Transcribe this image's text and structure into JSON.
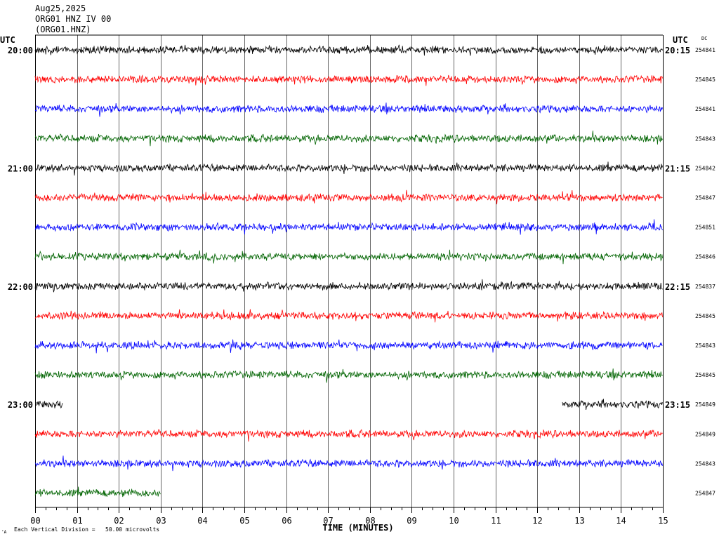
{
  "header": {
    "date": "Aug25,2025",
    "station_line": "ORG01 HNZ IV 00",
    "channel_line": "(ORG01.HNZ)"
  },
  "left_axis_label": "UTC",
  "right_axis_label": "UTC",
  "dc_label": "DC",
  "footer": {
    "x_axis_title": "TIME (MINUTES)",
    "scale_note": "Each Vertical Division =   50.00 microvolts",
    "corner_mark": "‘A"
  },
  "colors": {
    "black": "#000000",
    "red": "#ff0000",
    "blue": "#0000ff",
    "green": "#006400",
    "grid": "#000000"
  },
  "chart_data": {
    "type": "line",
    "title": "",
    "xlabel": "TIME (MINUTES)",
    "ylabel": "",
    "xlim": [
      0,
      15
    ],
    "x_ticks": [
      "00",
      "01",
      "02",
      "03",
      "04",
      "05",
      "06",
      "07",
      "08",
      "09",
      "10",
      "11",
      "12",
      "13",
      "14",
      "15"
    ],
    "trace_colors_cycle": [
      "black",
      "red",
      "blue",
      "green"
    ],
    "hour_labels_left": [
      "20:00",
      "21:00",
      "22:00",
      "23:00"
    ],
    "hour_labels_right": [
      "20:15",
      "21:15",
      "22:15",
      "23:15"
    ],
    "series": [
      {
        "dc": "254841",
        "segments": [
          [
            0,
            15
          ]
        ]
      },
      {
        "dc": "254845",
        "segments": [
          [
            0,
            15
          ]
        ]
      },
      {
        "dc": "254841",
        "segments": [
          [
            0,
            15
          ]
        ]
      },
      {
        "dc": "254843",
        "segments": [
          [
            0,
            15
          ]
        ]
      },
      {
        "dc": "254842",
        "segments": [
          [
            0,
            15
          ]
        ]
      },
      {
        "dc": "254847",
        "segments": [
          [
            0,
            15
          ]
        ]
      },
      {
        "dc": "254851",
        "segments": [
          [
            0,
            15
          ]
        ]
      },
      {
        "dc": "254846",
        "segments": [
          [
            0,
            15
          ]
        ]
      },
      {
        "dc": "254837",
        "segments": [
          [
            0,
            15
          ]
        ]
      },
      {
        "dc": "254845",
        "segments": [
          [
            0,
            15
          ]
        ]
      },
      {
        "dc": "254843",
        "segments": [
          [
            0,
            15
          ]
        ]
      },
      {
        "dc": "254845",
        "segments": [
          [
            0,
            15
          ]
        ]
      },
      {
        "dc": "254849",
        "segments": [
          [
            0,
            0.67
          ],
          [
            12.6,
            15
          ]
        ]
      },
      {
        "dc": "254849",
        "segments": [
          [
            0,
            15
          ]
        ]
      },
      {
        "dc": "254843",
        "segments": [
          [
            0,
            15
          ]
        ]
      },
      {
        "dc": "254847",
        "segments": [
          [
            0,
            3.0
          ]
        ]
      }
    ]
  }
}
